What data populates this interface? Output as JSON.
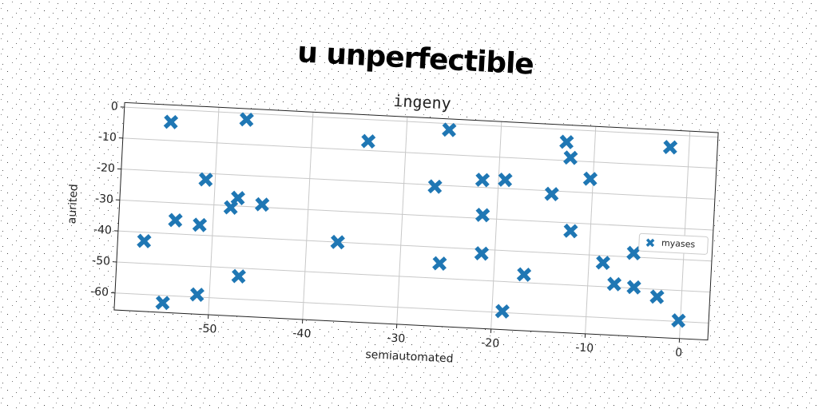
{
  "chart_data": {
    "type": "scatter",
    "title": "u unperfectible",
    "subtitle": "ingeny",
    "x_label": "semiautomated",
    "y_label": "aurited",
    "series": [
      {
        "name": "myases",
        "color": "#1f77b4",
        "x": [
          -55,
          -47,
          -34,
          -25.5,
          -13,
          -12.5,
          -2,
          -51,
          -26.7,
          -21.7,
          -19.3,
          -10.3,
          -14.3,
          -47.5,
          -48.2,
          -44.9,
          -54,
          -51.4,
          -21.5,
          -12.1,
          -57.2,
          -36.7,
          -21.4,
          -25.8,
          -8.5,
          -5.3,
          -47,
          -16.8,
          -7.2,
          -5.1,
          -2.6,
          -54.9,
          -51.3,
          -18.9,
          -0.2
        ],
        "values": [
          -4,
          -2,
          -7,
          -2,
          -4,
          -9,
          -4,
          -22,
          -20.5,
          -17.6,
          -17.2,
          -15.5,
          -21,
          -27.4,
          -30.6,
          -29.1,
          -35.6,
          -36.7,
          -28.9,
          -32.6,
          -42.8,
          -40,
          -41.3,
          -45.2,
          -42.3,
          -38.7,
          -52.6,
          -47.4,
          -49,
          -49.7,
          -52.4,
          -62.4,
          -59.2,
          -59.6,
          -59.7
        ]
      }
    ],
    "xlim": [
      -60,
      3
    ],
    "ylim": [
      -65.5,
      1.5
    ],
    "xticks": [
      -50,
      -40,
      -30,
      -20,
      -10,
      0
    ],
    "yticks": [
      0,
      -10,
      -20,
      -30,
      -40,
      -50,
      -60
    ],
    "grid": true,
    "legend": "right"
  }
}
